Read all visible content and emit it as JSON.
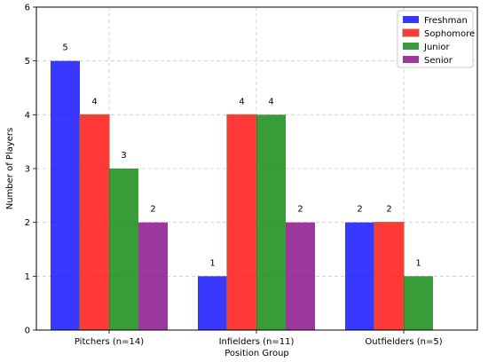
{
  "chart_data": {
    "type": "bar",
    "categories": [
      "Pitchers (n=14)",
      "Infielders (n=11)",
      "Outfielders (n=5)"
    ],
    "series": [
      {
        "name": "Freshman",
        "values": [
          5,
          1,
          2
        ],
        "color": "#0000ff",
        "labels": [
          "5",
          "1",
          "2"
        ]
      },
      {
        "name": "Sophomore",
        "values": [
          4,
          4,
          2
        ],
        "color": "#ff0000",
        "edge": "#c0603a",
        "labels": [
          "4",
          "4",
          "2"
        ]
      },
      {
        "name": "Junior",
        "values": [
          3,
          4,
          1
        ],
        "color": "#008000",
        "labels": [
          "3",
          "4",
          "1"
        ]
      },
      {
        "name": "Senior",
        "values": [
          2,
          2,
          0
        ],
        "color": "#800080",
        "labels": [
          "2",
          "2",
          ""
        ]
      }
    ],
    "xlabel": "Position Group",
    "ylabel": "Number of Players",
    "ylim": [
      0,
      6
    ],
    "yticks": [
      "0",
      "1",
      "2",
      "3",
      "4",
      "5",
      "6"
    ],
    "grid": true,
    "legend_position": "top-right"
  }
}
